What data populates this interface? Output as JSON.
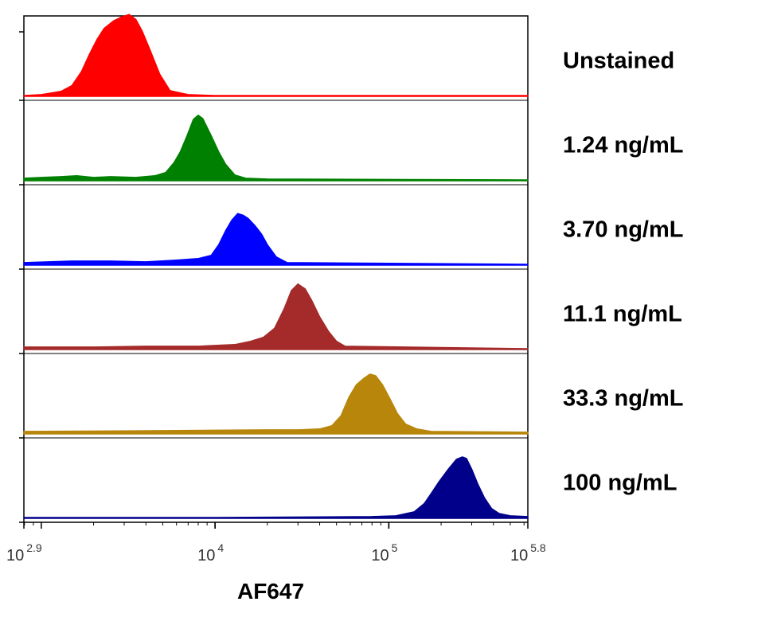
{
  "chart_data": {
    "type": "area",
    "subtype": "staggered-histogram-overlay",
    "xlabel": "AF647",
    "ylabel": "",
    "xscale": "log10",
    "xlim": [
      794,
      631000
    ],
    "x_ticks": [
      {
        "base": "10",
        "exp": "2.9",
        "value": 794
      },
      {
        "base": "10",
        "exp": "4",
        "value": 10000
      },
      {
        "base": "10",
        "exp": "5",
        "value": 100000
      },
      {
        "base": "10",
        "exp": "5.8",
        "value": 631000
      }
    ],
    "grid": false,
    "legend_placement": "right",
    "series": [
      {
        "name": "Unstained",
        "color": "#ff0000",
        "x": [
          794,
          1000,
          1300,
          1500,
          1700,
          1900,
          2100,
          2300,
          2600,
          2900,
          3200,
          3500,
          3800,
          4200,
          4800,
          5500,
          7000,
          10000,
          100000,
          631000
        ],
        "y": [
          1,
          2,
          6,
          13,
          30,
          52,
          70,
          83,
          92,
          97,
          100,
          94,
          80,
          58,
          27,
          7,
          2,
          1,
          1,
          1
        ]
      },
      {
        "name": "1.24 ng/mL",
        "color": "#008000",
        "x": [
          794,
          1000,
          1300,
          1600,
          2000,
          2500,
          3500,
          4500,
          5200,
          5800,
          6300,
          6900,
          7500,
          8000,
          8500,
          9500,
          10500,
          11500,
          13000,
          15000,
          20000,
          631000
        ],
        "y": [
          3,
          4,
          5,
          6,
          4,
          5,
          4,
          6,
          10,
          22,
          35,
          55,
          75,
          80,
          76,
          55,
          35,
          20,
          7,
          3,
          2,
          1
        ]
      },
      {
        "name": "3.70 ng/mL",
        "color": "#0000ff",
        "x": [
          794,
          1500,
          2500,
          4000,
          6000,
          8000,
          9500,
          10500,
          11500,
          12500,
          13500,
          14500,
          15500,
          17000,
          18500,
          20000,
          22500,
          26000,
          631000
        ],
        "y": [
          3,
          5,
          5,
          4,
          6,
          8,
          12,
          25,
          42,
          55,
          63,
          61,
          57,
          48,
          38,
          25,
          10,
          3,
          1
        ]
      },
      {
        "name": "11.1 ng/mL",
        "color": "#a52a2a",
        "x": [
          794,
          2000,
          4000,
          8000,
          13000,
          16000,
          19000,
          22000,
          25000,
          27500,
          30000,
          33000,
          36000,
          40000,
          45000,
          50000,
          56000,
          631000
        ],
        "y": [
          3,
          3,
          4,
          4,
          6,
          10,
          15,
          26,
          50,
          72,
          80,
          74,
          60,
          40,
          22,
          10,
          4,
          1
        ]
      },
      {
        "name": "33.3 ng/mL",
        "color": "#b8860b",
        "x": [
          794,
          5000,
          20000,
          30000,
          40000,
          47000,
          53000,
          59000,
          65000,
          72000,
          78000,
          84000,
          92000,
          102000,
          112000,
          125000,
          145000,
          175000,
          631000
        ],
        "y": [
          3,
          4,
          5,
          5,
          6,
          10,
          22,
          45,
          60,
          68,
          73,
          71,
          60,
          42,
          25,
          12,
          6,
          3,
          2
        ]
      },
      {
        "name": "100 ng/mL",
        "color": "#00008b",
        "x": [
          794,
          10000,
          80000,
          110000,
          140000,
          160000,
          175000,
          195000,
          220000,
          245000,
          265000,
          280000,
          300000,
          325000,
          355000,
          390000,
          430000,
          500000,
          631000
        ],
        "y": [
          1,
          1,
          2,
          3,
          8,
          18,
          30,
          45,
          60,
          72,
          75,
          73,
          60,
          42,
          25,
          12,
          6,
          3,
          2
        ]
      }
    ]
  }
}
